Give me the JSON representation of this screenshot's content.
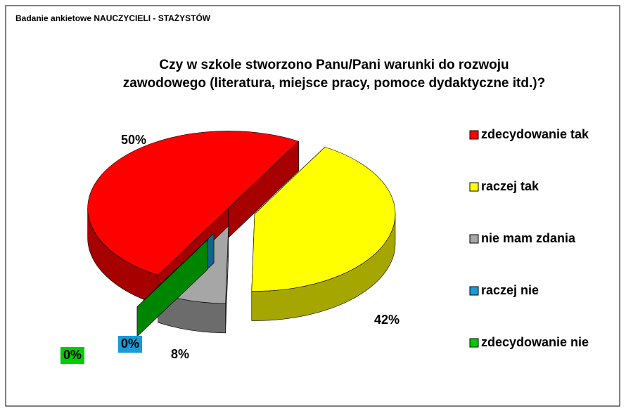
{
  "header": "Badanie ankietowe NAUCZYCIELI  - STAŻYSTÓW",
  "chart_data": {
    "type": "pie",
    "title": "Czy w szkole stworzono Panu/Pani warunki do rozwoju\nzawodowego (literatura, miejsce pracy, pomoce dydaktyczne itd.)?",
    "categories": [
      "zdecydowanie tak",
      "raczej tak",
      "nie mam zdania",
      "raczej nie",
      "zdecydowanie nie"
    ],
    "values": [
      50,
      42,
      8,
      0,
      0
    ],
    "value_labels": [
      "50%",
      "42%",
      "8%",
      "0%",
      "0%"
    ],
    "colors": [
      "#ff0000",
      "#ffff00",
      "#a6a6a6",
      "#1a9ad6",
      "#00cc00"
    ],
    "legend": "right"
  }
}
